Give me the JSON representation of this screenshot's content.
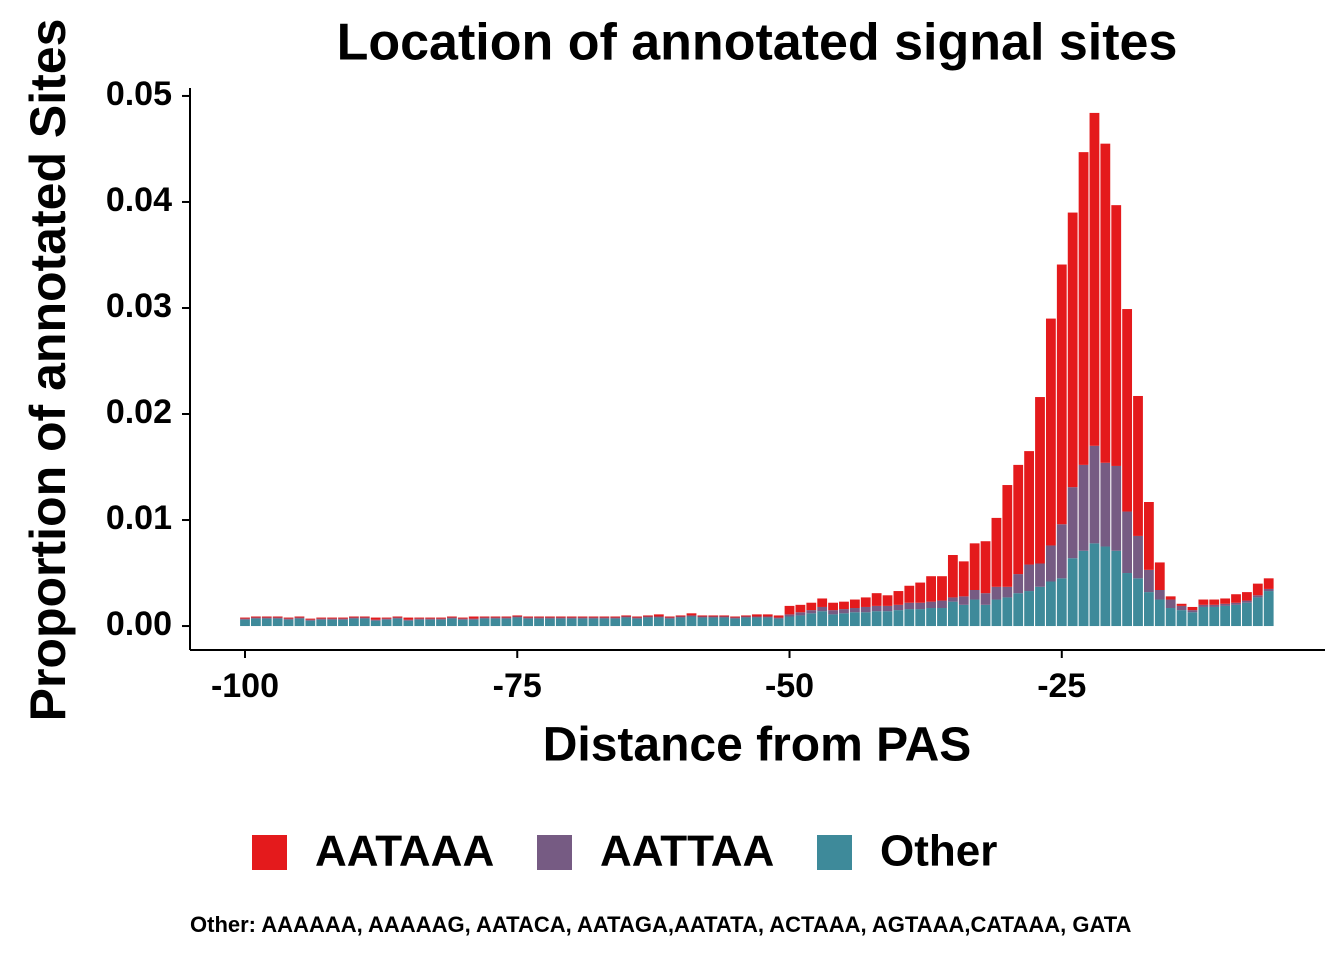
{
  "chart_data": {
    "type": "stacked_bar",
    "title": "Location of annotated signal sites",
    "xlabel": "Distance from PAS",
    "ylabel": "Proportion of annotated Sites",
    "caption": "Other: AAAAAA, AAAAAG, AATACA, AATAGA,AATATA, ACTAAA, AGTAAA,CATAAA, GATA",
    "x": [
      -100,
      -99,
      -98,
      -97,
      -96,
      -95,
      -94,
      -93,
      -92,
      -91,
      -90,
      -89,
      -88,
      -87,
      -86,
      -85,
      -84,
      -83,
      -82,
      -81,
      -80,
      -79,
      -78,
      -77,
      -76,
      -75,
      -74,
      -73,
      -72,
      -71,
      -70,
      -69,
      -68,
      -67,
      -66,
      -65,
      -64,
      -63,
      -62,
      -61,
      -60,
      -59,
      -58,
      -57,
      -56,
      -55,
      -54,
      -53,
      -52,
      -51,
      -50,
      -49,
      -48,
      -47,
      -46,
      -45,
      -44,
      -43,
      -42,
      -41,
      -40,
      -39,
      -38,
      -37,
      -36,
      -35,
      -34,
      -33,
      -32,
      -31,
      -30,
      -29,
      -28,
      -27,
      -26,
      -25,
      -24,
      -23,
      -22,
      -21,
      -20,
      -19,
      -18,
      -17,
      -16,
      -15,
      -14,
      -13,
      -12,
      -11,
      -10,
      -9,
      -8,
      -7,
      -6
    ],
    "series": [
      {
        "name": "AATAAA",
        "color": "#e41a1c",
        "values": [
          0.0001,
          0.0001,
          0.0001,
          0.0001,
          0.0001,
          0.0001,
          0.0001,
          0.0001,
          0.0001,
          0.0001,
          0.0001,
          0.0001,
          0.0002,
          0.0001,
          0.0001,
          0.0002,
          0.0001,
          0.0001,
          0.0001,
          0.0001,
          0.0001,
          0.0002,
          0.0001,
          0.0001,
          0.0001,
          0.0001,
          0.0001,
          0.0001,
          0.0001,
          0.0001,
          0.0001,
          0.0001,
          0.0001,
          0.0001,
          0.0001,
          0.0001,
          0.0001,
          0.0001,
          0.0002,
          0.0001,
          0.0001,
          0.0002,
          0.0001,
          0.0001,
          0.0001,
          0.0001,
          0.0001,
          0.0002,
          0.0002,
          0.0002,
          0.0008,
          0.0007,
          0.0007,
          0.0008,
          0.0007,
          0.0007,
          0.0008,
          0.0009,
          0.0012,
          0.001,
          0.0013,
          0.0016,
          0.0019,
          0.0024,
          0.0023,
          0.004,
          0.0033,
          0.0044,
          0.0049,
          0.0065,
          0.0096,
          0.0103,
          0.0107,
          0.0157,
          0.0214,
          0.0245,
          0.0259,
          0.0295,
          0.0314,
          0.0301,
          0.0246,
          0.0191,
          0.0132,
          0.0064,
          0.0026,
          0.0003,
          0.0002,
          0.0003,
          0.0005,
          0.0005,
          0.0005,
          0.0008,
          0.0008,
          0.0011,
          0.001
        ]
      },
      {
        "name": "AATTAA",
        "color": "#765b83",
        "values": [
          0.0001,
          0.0001,
          0.0001,
          0.0001,
          0.0001,
          0.0001,
          0.0001,
          0.0001,
          0.0001,
          0.0001,
          0.0001,
          0.0001,
          0.0001,
          0.0001,
          0.0001,
          0.0001,
          0.0001,
          0.0001,
          0.0001,
          0.0001,
          0.0001,
          0.0001,
          0.0001,
          0.0001,
          0.0001,
          0.0001,
          0.0001,
          0.0001,
          0.0001,
          0.0001,
          0.0001,
          0.0001,
          0.0001,
          0.0001,
          0.0001,
          0.0001,
          0.0001,
          0.0001,
          0.0001,
          0.0001,
          0.0001,
          0.0001,
          0.0001,
          0.0001,
          0.0001,
          0.0001,
          0.0001,
          0.0001,
          0.0001,
          0.0001,
          0.0002,
          0.0003,
          0.0003,
          0.0004,
          0.0004,
          0.0004,
          0.0004,
          0.0005,
          0.0005,
          0.0005,
          0.0005,
          0.0006,
          0.0006,
          0.0006,
          0.0007,
          0.0004,
          0.0008,
          0.0009,
          0.0011,
          0.0012,
          0.001,
          0.0018,
          0.0025,
          0.0022,
          0.0034,
          0.0051,
          0.0067,
          0.0081,
          0.0092,
          0.0079,
          0.008,
          0.0058,
          0.004,
          0.0021,
          0.0009,
          0.0008,
          0.0004,
          0.0002,
          0.0002,
          0.0002,
          0.0002,
          0.0002,
          0.0002,
          0.0002,
          0.0002
        ]
      },
      {
        "name": "Other",
        "color": "#3e8a9a",
        "values": [
          0.0006,
          0.0007,
          0.0007,
          0.0007,
          0.0006,
          0.0007,
          0.0005,
          0.0006,
          0.0006,
          0.0006,
          0.0007,
          0.0007,
          0.0005,
          0.0006,
          0.0007,
          0.0005,
          0.0006,
          0.0006,
          0.0006,
          0.0007,
          0.0006,
          0.0006,
          0.0007,
          0.0007,
          0.0007,
          0.0008,
          0.0007,
          0.0007,
          0.0007,
          0.0007,
          0.0007,
          0.0007,
          0.0007,
          0.0007,
          0.0007,
          0.0008,
          0.0007,
          0.0008,
          0.0008,
          0.0007,
          0.0008,
          0.0009,
          0.0008,
          0.0008,
          0.0008,
          0.0007,
          0.0008,
          0.0008,
          0.0008,
          0.0007,
          0.0009,
          0.001,
          0.0012,
          0.0014,
          0.0011,
          0.0012,
          0.0013,
          0.0013,
          0.0014,
          0.0014,
          0.0015,
          0.0016,
          0.0016,
          0.0017,
          0.0017,
          0.0023,
          0.002,
          0.0025,
          0.002,
          0.0025,
          0.0027,
          0.0031,
          0.0033,
          0.0037,
          0.0042,
          0.0045,
          0.0064,
          0.0071,
          0.0078,
          0.0075,
          0.0071,
          0.005,
          0.0045,
          0.0032,
          0.0025,
          0.0017,
          0.0015,
          0.0013,
          0.0018,
          0.0018,
          0.0019,
          0.002,
          0.0022,
          0.0027,
          0.0033
        ]
      }
    ],
    "xlim": [
      -105.05,
      -0.83
    ],
    "xticks": [
      -100,
      -75,
      -50,
      -25
    ],
    "ylim": [
      -0.00226,
      0.05075
    ],
    "yticks": [
      {
        "value": 0,
        "label": "0.00"
      },
      {
        "value": 0.01,
        "label": "0.01"
      },
      {
        "value": 0.02,
        "label": "0.02"
      },
      {
        "value": 0.03,
        "label": "0.03"
      },
      {
        "value": 0.04,
        "label": "0.04"
      },
      {
        "value": 0.05,
        "label": "0.05"
      }
    ],
    "legend": "bottom"
  }
}
